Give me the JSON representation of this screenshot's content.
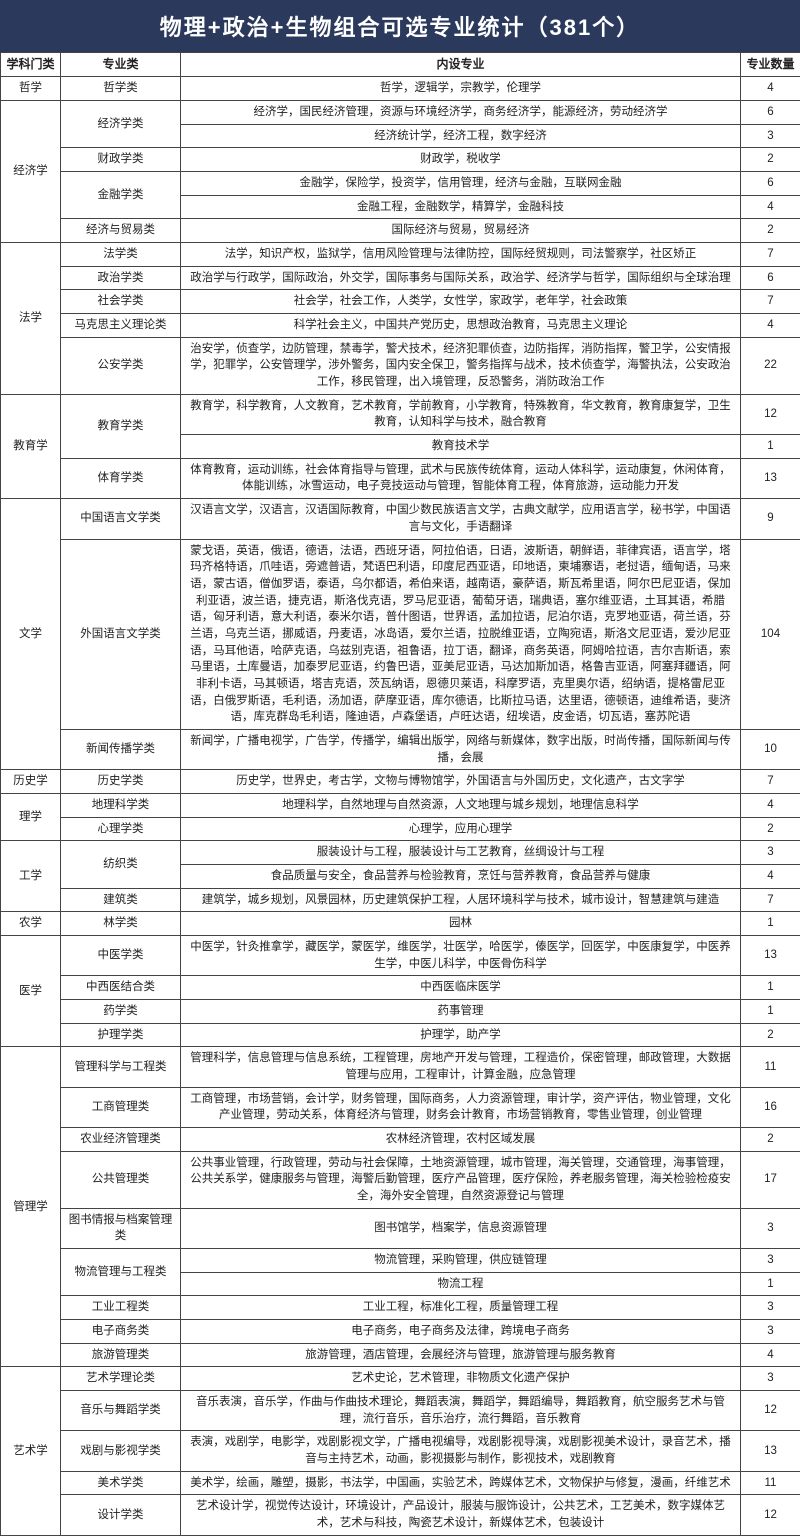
{
  "title": "物理+政治+生物组合可选专业统计（381个）",
  "headers": [
    "学科门类",
    "专业类",
    "内设专业",
    "专业数量"
  ],
  "rows": [
    {
      "cat": "哲学",
      "catSpan": 1,
      "sub": "哲学类",
      "subSpan": 1,
      "major": "哲学，逻辑学，宗教学，伦理学",
      "cnt": 4
    },
    {
      "cat": "经济学",
      "catSpan": 5,
      "sub": "经济学类",
      "subSpan": 2,
      "major": "经济学，国民经济管理，资源与环境经济学，商务经济学，能源经济，劳动经济学",
      "cnt": 6
    },
    {
      "major": "经济统计学，经济工程，数字经济",
      "cnt": 3
    },
    {
      "sub": "财政学类",
      "subSpan": 1,
      "major": "财政学，税收学",
      "cnt": 2
    },
    {
      "sub": "金融学类",
      "subSpan": 2,
      "major": "金融学，保险学，投资学，信用管理，经济与金融，互联网金融",
      "cnt": 6
    },
    {
      "major": "金融工程，金融数学，精算学，金融科技",
      "cnt": 4
    },
    {
      "cat": "",
      "catSpan": 1,
      "sub": "经济与贸易类",
      "subSpan": 1,
      "major": "国际经济与贸易，贸易经济",
      "cnt": 2,
      "mergeUp": true
    },
    {
      "cat": "法学",
      "catSpan": 5,
      "sub": "法学类",
      "subSpan": 1,
      "major": "法学，知识产权，监狱学，信用风险管理与法律防控，国际经贸规则，司法警察学，社区矫正",
      "cnt": 7
    },
    {
      "sub": "政治学类",
      "subSpan": 1,
      "major": "政治学与行政学，国际政治，外交学，国际事务与国际关系，政治学、经济学与哲学，国际组织与全球治理",
      "cnt": 6
    },
    {
      "sub": "社会学类",
      "subSpan": 1,
      "major": "社会学，社会工作，人类学，女性学，家政学，老年学，社会政策",
      "cnt": 7
    },
    {
      "sub": "马克思主义理论类",
      "subSpan": 1,
      "major": "科学社会主义，中国共产党历史，思想政治教育，马克思主义理论",
      "cnt": 4
    },
    {
      "sub": "公安学类",
      "subSpan": 1,
      "major": "治安学，侦查学，边防管理，禁毒学，警犬技术，经济犯罪侦查，边防指挥，消防指挥，警卫学，公安情报学，犯罪学，公安管理学，涉外警务，国内安全保卫，警务指挥与战术，技术侦查学，海警执法，公安政治工作，移民管理，出入境管理，反恐警务，消防政治工作",
      "cnt": 22
    },
    {
      "cat": "教育学",
      "catSpan": 3,
      "sub": "教育学类",
      "subSpan": 2,
      "major": "教育学，科学教育，人文教育，艺术教育，学前教育，小学教育，特殊教育，华文教育，教育康复学，卫生教育，认知科学与技术，融合教育",
      "cnt": 12
    },
    {
      "major": "教育技术学",
      "cnt": 1
    },
    {
      "sub": "体育学类",
      "subSpan": 1,
      "major": "体育教育，运动训练，社会体育指导与管理，武术与民族传统体育，运动人体科学，运动康复，休闲体育，体能训练，冰雪运动，电子竞技运动与管理，智能体育工程，体育旅游，运动能力开发",
      "cnt": 13
    },
    {
      "cat": "文学",
      "catSpan": 3,
      "sub": "中国语言文学类",
      "subSpan": 1,
      "major": "汉语言文学，汉语言，汉语国际教育，中国少数民族语言文学，古典文献学，应用语言学，秘书学，中国语言与文化，手语翻译",
      "cnt": 9
    },
    {
      "sub": "外国语言文学类",
      "subSpan": 1,
      "major": "蒙戈语，英语，俄语，德语，法语，西班牙语，阿拉伯语，日语，波斯语，朝鲜语，菲律宾语，语言学，塔玛齐格特语，爪哇语，旁遮普语，梵语巴利语，印度尼西亚语，印地语，柬埔寨语，老挝语，缅甸语，马来语，蒙古语，僧伽罗语，泰语，乌尔都语，希伯来语，越南语，豪萨语，斯瓦希里语，阿尔巴尼亚语，保加利亚语，波兰语，捷克语，斯洛伐克语，罗马尼亚语，葡萄牙语，瑞典语，塞尔维亚语，土耳其语，希腊语，匈牙利语，意大利语，泰米尔语，普什图语，世界语，孟加拉语，尼泊尔语，克罗地亚语，荷兰语，芬兰语，乌克兰语，挪威语，丹麦语，冰岛语，爱尔兰语，拉脱维亚语，立陶宛语，斯洛文尼亚语，爱沙尼亚语，马耳他语，哈萨克语，乌兹别克语，祖鲁语，拉丁语，翻译，商务英语，阿姆哈拉语，吉尔吉斯语，索马里语，土库曼语，加泰罗尼亚语，约鲁巴语，亚美尼亚语，马达加斯加语，格鲁吉亚语，阿塞拜疆语，阿非利卡语，马其顿语，塔吉克语，茨瓦纳语，恩德贝莱语，科摩罗语，克里奥尔语，绍纳语，提格雷尼亚语，白俄罗斯语，毛利语，汤加语，萨摩亚语，库尔德语，比斯拉马语，达里语，德顿语，迪维希语，斐济语，库克群岛毛利语，隆迪语，卢森堡语，卢旺达语，纽埃语，皮金语，切瓦语，塞苏陀语",
      "cnt": 104
    },
    {
      "sub": "新闻传播学类",
      "subSpan": 1,
      "major": "新闻学，广播电视学，广告学，传播学，编辑出版学，网络与新媒体，数字出版，时尚传播，国际新闻与传播，会展",
      "cnt": 10
    },
    {
      "cat": "历史学",
      "catSpan": 1,
      "sub": "历史学类",
      "subSpan": 1,
      "major": "历史学，世界史，考古学，文物与博物馆学，外国语言与外国历史，文化遗产，古文字学",
      "cnt": 7
    },
    {
      "cat": "理学",
      "catSpan": 2,
      "sub": "地理科学类",
      "subSpan": 1,
      "major": "地理科学，自然地理与自然资源，人文地理与城乡规划，地理信息科学",
      "cnt": 4
    },
    {
      "sub": "心理学类",
      "subSpan": 1,
      "major": "心理学，应用心理学",
      "cnt": 2
    },
    {
      "cat": "工学",
      "catSpan": 3,
      "sub": "纺织类",
      "subSpan": 2,
      "major": "服装设计与工程，服装设计与工艺教育，丝绸设计与工程",
      "cnt": 3
    },
    {
      "major": "食品质量与安全，食品营养与检验教育，烹饪与营养教育，食品营养与健康",
      "cnt": 4
    },
    {
      "sub": "建筑类",
      "subSpan": 1,
      "major": "建筑学，城乡规划，风景园林，历史建筑保护工程，人居环境科学与技术，城市设计，智慧建筑与建造",
      "cnt": 7
    },
    {
      "cat": "农学",
      "catSpan": 1,
      "sub": "林学类",
      "subSpan": 1,
      "major": "园林",
      "cnt": 1
    },
    {
      "cat": "医学",
      "catSpan": 4,
      "sub": "中医学类",
      "subSpan": 1,
      "major": "中医学，针灸推拿学，藏医学，蒙医学，维医学，壮医学，哈医学，傣医学，回医学，中医康复学，中医养生学，中医儿科学，中医骨伤科学",
      "cnt": 13
    },
    {
      "sub": "中西医结合类",
      "subSpan": 1,
      "major": "中西医临床医学",
      "cnt": 1
    },
    {
      "sub": "药学类",
      "subSpan": 1,
      "major": "药事管理",
      "cnt": 1
    },
    {
      "sub": "护理学类",
      "subSpan": 1,
      "major": "护理学，助产学",
      "cnt": 2
    },
    {
      "cat": "管理学",
      "catSpan": 9,
      "sub": "管理科学与工程类",
      "subSpan": 1,
      "major": "管理科学，信息管理与信息系统，工程管理，房地产开发与管理，工程造价，保密管理，邮政管理，大数据管理与应用，工程审计，计算金融，应急管理",
      "cnt": 11
    },
    {
      "sub": "工商管理类",
      "subSpan": 1,
      "major": "工商管理，市场营销，会计学，财务管理，国际商务，人力资源管理，审计学，资产评估，物业管理，文化产业管理，劳动关系，体育经济与管理，财务会计教育，市场营销教育，零售业管理，创业管理",
      "cnt": 16
    },
    {
      "sub": "农业经济管理类",
      "subSpan": 1,
      "major": "农林经济管理，农村区域发展",
      "cnt": 2
    },
    {
      "sub": "公共管理类",
      "subSpan": 1,
      "major": "公共事业管理，行政管理，劳动与社会保障，土地资源管理，城市管理，海关管理，交通管理，海事管理，公共关系学，健康服务与管理，海警后勤管理，医疗产品管理，医疗保险，养老服务管理，海关检验检疫安全，海外安全管理，自然资源登记与管理",
      "cnt": 17
    },
    {
      "sub": "图书情报与档案管理类",
      "subSpan": 1,
      "major": "图书馆学，档案学，信息资源管理",
      "cnt": 3
    },
    {
      "sub": "物流管理与工程类",
      "subSpan": 2,
      "major": "物流管理，采购管理，供应链管理",
      "cnt": 3
    },
    {
      "major": "物流工程",
      "cnt": 1
    },
    {
      "sub": "工业工程类",
      "subSpan": 1,
      "major": "工业工程，标准化工程，质量管理工程",
      "cnt": 3
    },
    {
      "sub": "电子商务类",
      "subSpan": 1,
      "major": "电子商务，电子商务及法律，跨境电子商务",
      "cnt": 3
    },
    {
      "cat": "",
      "catSpan": 1,
      "sub": "旅游管理类",
      "subSpan": 1,
      "major": "旅游管理，酒店管理，会展经济与管理，旅游管理与服务教育",
      "cnt": 4,
      "mergeUp": true
    },
    {
      "cat": "艺术学",
      "catSpan": 5,
      "sub": "艺术学理论类",
      "subSpan": 1,
      "major": "艺术史论，艺术管理，非物质文化遗产保护",
      "cnt": 3
    },
    {
      "sub": "音乐与舞蹈学类",
      "subSpan": 1,
      "major": "音乐表演，音乐学，作曲与作曲技术理论，舞蹈表演，舞蹈学，舞蹈编导，舞蹈教育，航空服务艺术与管理，流行音乐，音乐治疗，流行舞蹈，音乐教育",
      "cnt": 12
    },
    {
      "sub": "戏剧与影视学类",
      "subSpan": 1,
      "major": "表演，戏剧学，电影学，戏剧影视文学，广播电视编导，戏剧影视导演，戏剧影视美术设计，录音艺术，播音与主持艺术，动画，影视摄影与制作，影视技术，戏剧教育",
      "cnt": 13
    },
    {
      "sub": "美术学类",
      "subSpan": 1,
      "major": "美术学，绘画，雕塑，摄影，书法学，中国画，实验艺术，跨媒体艺术，文物保护与修复，漫画，纤维艺术",
      "cnt": 11
    },
    {
      "sub": "设计学类",
      "subSpan": 1,
      "major": "艺术设计学，视觉传达设计，环境设计，产品设计，服装与服饰设计，公共艺术，工艺美术，数字媒体艺术，艺术与科技，陶瓷艺术设计，新媒体艺术，包装设计",
      "cnt": 12
    }
  ]
}
